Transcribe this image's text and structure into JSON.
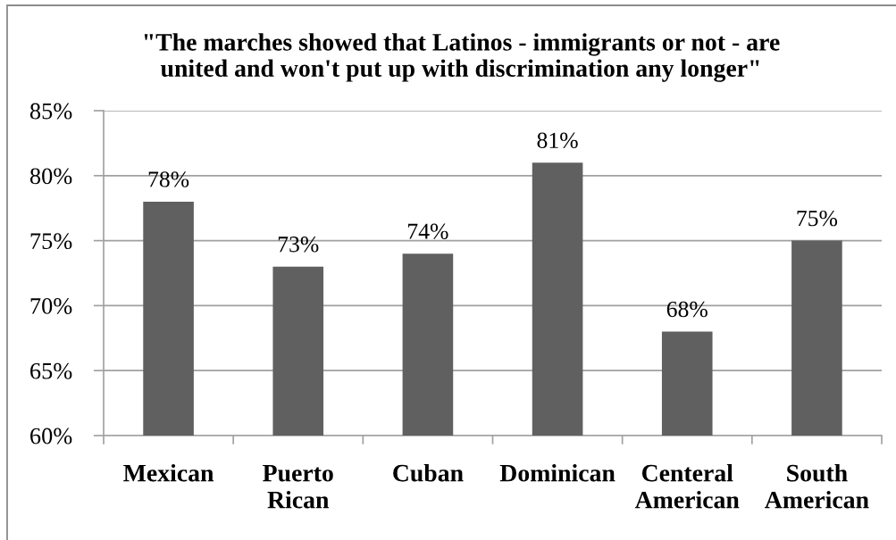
{
  "chart_data": {
    "type": "bar",
    "title": "\"The marches showed that Latinos - immigrants or not - are\nunited and won't put up with discrimination any longer\"",
    "categories": [
      "Mexican",
      "Puerto Rican",
      "Cuban",
      "Dominican",
      "Centeral American",
      "South American"
    ],
    "values": [
      78,
      73,
      74,
      81,
      68,
      75
    ],
    "value_labels": [
      "78%",
      "73%",
      "74%",
      "81%",
      "68%",
      "75%"
    ],
    "color": "#606060",
    "ylim": [
      60,
      85
    ],
    "yticks": [
      {
        "value": 60,
        "label": "60%"
      },
      {
        "value": 65,
        "label": "65%"
      },
      {
        "value": 70,
        "label": "70%"
      },
      {
        "value": 75,
        "label": "75%"
      },
      {
        "value": 80,
        "label": "80%"
      },
      {
        "value": 85,
        "label": "85%"
      }
    ],
    "grid": "y"
  }
}
